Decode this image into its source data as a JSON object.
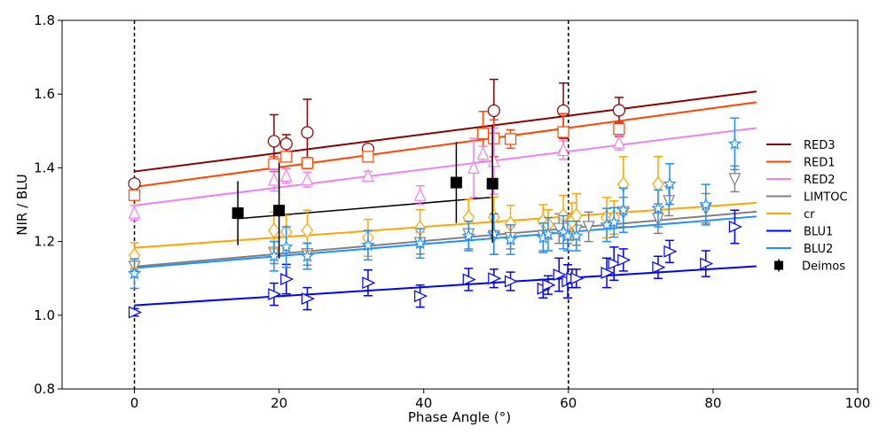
{
  "chart_data": {
    "type": "scatter",
    "title": "",
    "xlabel": "Phase Angle (°)",
    "ylabel": "NIR / BLU",
    "xlim": [
      -10,
      100
    ],
    "ylim": [
      0.8,
      1.8
    ],
    "xticks": [
      0,
      20,
      40,
      60,
      80,
      100
    ],
    "xtick_labels": [
      "0",
      "20",
      "40",
      "60",
      "80",
      "100"
    ],
    "yticks": [
      0.8,
      1.0,
      1.2,
      1.4,
      1.6,
      1.8
    ],
    "ytick_labels": [
      "0.8",
      "1.0",
      "1.2",
      "1.4",
      "1.6",
      "1.8"
    ],
    "grid": false,
    "legend_position": "right",
    "vertical_reference_lines": [
      0,
      60
    ],
    "series": [
      {
        "name": "RED3",
        "color": "#8b0000",
        "marker": "circle",
        "fit": {
          "x": [
            0,
            86
          ],
          "y": [
            1.39,
            1.607
          ]
        },
        "points": [
          {
            "x": 0,
            "y": 1.357,
            "err": 0.0
          },
          {
            "x": 19.3,
            "y": 1.472,
            "err": 0.072
          },
          {
            "x": 21.0,
            "y": 1.465,
            "err": 0.025
          },
          {
            "x": 23.9,
            "y": 1.496,
            "err": 0.09
          },
          {
            "x": 32.3,
            "y": 1.451,
            "err": 0.01
          },
          {
            "x": 49.7,
            "y": 1.555,
            "err": 0.085
          },
          {
            "x": 59.3,
            "y": 1.555,
            "err": 0.075
          },
          {
            "x": 67.0,
            "y": 1.556,
            "err": 0.035
          }
        ]
      },
      {
        "name": "RED1",
        "color": "#ff4500",
        "marker": "square",
        "fit": {
          "x": [
            0,
            86
          ],
          "y": [
            1.348,
            1.578
          ]
        },
        "points": [
          {
            "x": 0,
            "y": 1.326,
            "err": 0.0
          },
          {
            "x": 19.3,
            "y": 1.41,
            "err": 0.02
          },
          {
            "x": 21.0,
            "y": 1.43,
            "err": 0.012
          },
          {
            "x": 23.9,
            "y": 1.413,
            "err": 0.015
          },
          {
            "x": 32.3,
            "y": 1.43,
            "err": 0.01
          },
          {
            "x": 48.2,
            "y": 1.493,
            "err": 0.06
          },
          {
            "x": 49.7,
            "y": 1.48,
            "err": 0.05
          },
          {
            "x": 52.0,
            "y": 1.478,
            "err": 0.025
          },
          {
            "x": 59.3,
            "y": 1.497,
            "err": 0.05
          },
          {
            "x": 67.0,
            "y": 1.505,
            "err": 0.02
          }
        ]
      },
      {
        "name": "RED2",
        "color": "#ee82ee",
        "marker": "triangle-up",
        "fit": {
          "x": [
            0,
            86
          ],
          "y": [
            1.298,
            1.508
          ]
        },
        "points": [
          {
            "x": 0,
            "y": 1.278,
            "err": 0.02
          },
          {
            "x": 19.3,
            "y": 1.367,
            "err": 0.03
          },
          {
            "x": 21.0,
            "y": 1.378,
            "err": 0.02
          },
          {
            "x": 23.9,
            "y": 1.368,
            "err": 0.02
          },
          {
            "x": 32.3,
            "y": 1.378,
            "err": 0.012
          },
          {
            "x": 39.5,
            "y": 1.326,
            "err": 0.025
          },
          {
            "x": 46.9,
            "y": 1.4,
            "err": 0.08
          },
          {
            "x": 48.2,
            "y": 1.438,
            "err": 0.02
          },
          {
            "x": 49.7,
            "y": 1.418,
            "err": 0.09
          },
          {
            "x": 59.3,
            "y": 1.448,
            "err": 0.025
          },
          {
            "x": 67.0,
            "y": 1.468,
            "err": 0.02
          }
        ]
      },
      {
        "name": "LIMTOC",
        "color": "#808080",
        "marker": "triangle-down",
        "fit": {
          "x": [
            0,
            86
          ],
          "y": [
            1.132,
            1.281
          ]
        },
        "points": [
          {
            "x": 0,
            "y": 1.132,
            "err": 0.01
          },
          {
            "x": 19.3,
            "y": 1.17,
            "err": 0.03
          },
          {
            "x": 23.9,
            "y": 1.166,
            "err": 0.03
          },
          {
            "x": 39.5,
            "y": 1.196,
            "err": 0.03
          },
          {
            "x": 46.2,
            "y": 1.22,
            "err": 0.04
          },
          {
            "x": 49.7,
            "y": 1.215,
            "err": 0.05
          },
          {
            "x": 52.0,
            "y": 1.21,
            "err": 0.03
          },
          {
            "x": 56.5,
            "y": 1.215,
            "err": 0.04
          },
          {
            "x": 58.7,
            "y": 1.235,
            "err": 0.04
          },
          {
            "x": 59.9,
            "y": 1.235,
            "err": 0.04
          },
          {
            "x": 61.1,
            "y": 1.23,
            "err": 0.04
          },
          {
            "x": 62.8,
            "y": 1.24,
            "err": 0.04
          },
          {
            "x": 67.6,
            "y": 1.28,
            "err": 0.04
          },
          {
            "x": 72.4,
            "y": 1.262,
            "err": 0.04
          },
          {
            "x": 73.9,
            "y": 1.31,
            "err": 0.04
          },
          {
            "x": 79.0,
            "y": 1.29,
            "err": 0.04
          },
          {
            "x": 83.0,
            "y": 1.37,
            "err": 0.035
          }
        ]
      },
      {
        "name": "cr",
        "color": "#ffa500",
        "marker": "diamond",
        "fit": {
          "x": [
            0,
            86
          ],
          "y": [
            1.183,
            1.305
          ]
        },
        "points": [
          {
            "x": 0,
            "y": 1.162,
            "err": 0.035
          },
          {
            "x": 19.3,
            "y": 1.23,
            "err": 0.05
          },
          {
            "x": 21.0,
            "y": 1.226,
            "err": 0.045
          },
          {
            "x": 23.9,
            "y": 1.23,
            "err": 0.055
          },
          {
            "x": 32.3,
            "y": 1.21,
            "err": 0.05
          },
          {
            "x": 39.5,
            "y": 1.236,
            "err": 0.05
          },
          {
            "x": 46.2,
            "y": 1.265,
            "err": 0.05
          },
          {
            "x": 49.7,
            "y": 1.266,
            "err": 0.055
          },
          {
            "x": 52.0,
            "y": 1.248,
            "err": 0.05
          },
          {
            "x": 56.5,
            "y": 1.255,
            "err": 0.045
          },
          {
            "x": 57.2,
            "y": 1.246,
            "err": 0.04
          },
          {
            "x": 59.3,
            "y": 1.27,
            "err": 0.055
          },
          {
            "x": 60.5,
            "y": 1.255,
            "err": 0.05
          },
          {
            "x": 61.1,
            "y": 1.27,
            "err": 0.06
          },
          {
            "x": 65.3,
            "y": 1.265,
            "err": 0.055
          },
          {
            "x": 66.3,
            "y": 1.265,
            "err": 0.045
          },
          {
            "x": 67.6,
            "y": 1.355,
            "err": 0.075
          },
          {
            "x": 72.4,
            "y": 1.356,
            "err": 0.075
          }
        ]
      },
      {
        "name": "BLU1",
        "color": "#0000ff",
        "marker": "triangle-right",
        "fit": {
          "x": [
            0,
            86
          ],
          "y": [
            1.027,
            1.133
          ]
        },
        "points": [
          {
            "x": 0,
            "y": 1.008,
            "err": 0.01
          },
          {
            "x": 19.3,
            "y": 1.057,
            "err": 0.03
          },
          {
            "x": 21.0,
            "y": 1.098,
            "err": 0.04
          },
          {
            "x": 23.9,
            "y": 1.045,
            "err": 0.03
          },
          {
            "x": 32.3,
            "y": 1.088,
            "err": 0.035
          },
          {
            "x": 39.5,
            "y": 1.052,
            "err": 0.03
          },
          {
            "x": 46.2,
            "y": 1.097,
            "err": 0.03
          },
          {
            "x": 49.7,
            "y": 1.1,
            "err": 0.025
          },
          {
            "x": 52.0,
            "y": 1.092,
            "err": 0.025
          },
          {
            "x": 56.5,
            "y": 1.072,
            "err": 0.025
          },
          {
            "x": 57.2,
            "y": 1.082,
            "err": 0.025
          },
          {
            "x": 58.7,
            "y": 1.11,
            "err": 0.045
          },
          {
            "x": 59.9,
            "y": 1.092,
            "err": 0.045
          },
          {
            "x": 60.5,
            "y": 1.1,
            "err": 0.025
          },
          {
            "x": 61.1,
            "y": 1.1,
            "err": 0.025
          },
          {
            "x": 65.3,
            "y": 1.115,
            "err": 0.04
          },
          {
            "x": 66.3,
            "y": 1.14,
            "err": 0.045
          },
          {
            "x": 67.6,
            "y": 1.15,
            "err": 0.03
          },
          {
            "x": 72.4,
            "y": 1.13,
            "err": 0.03
          },
          {
            "x": 74.0,
            "y": 1.173,
            "err": 0.03
          },
          {
            "x": 79.0,
            "y": 1.14,
            "err": 0.035
          },
          {
            "x": 83.0,
            "y": 1.24,
            "err": 0.045
          }
        ]
      },
      {
        "name": "BLU2",
        "color": "#1e90ff",
        "marker": "star",
        "fit": {
          "x": [
            0,
            86
          ],
          "y": [
            1.128,
            1.268
          ]
        },
        "points": [
          {
            "x": 0,
            "y": 1.113,
            "err": 0.04
          },
          {
            "x": 19.3,
            "y": 1.16,
            "err": 0.04
          },
          {
            "x": 21.0,
            "y": 1.185,
            "err": 0.055
          },
          {
            "x": 23.9,
            "y": 1.16,
            "err": 0.035
          },
          {
            "x": 32.3,
            "y": 1.19,
            "err": 0.04
          },
          {
            "x": 39.5,
            "y": 1.195,
            "err": 0.04
          },
          {
            "x": 46.2,
            "y": 1.215,
            "err": 0.04
          },
          {
            "x": 49.7,
            "y": 1.22,
            "err": 0.055
          },
          {
            "x": 52.0,
            "y": 1.205,
            "err": 0.04
          },
          {
            "x": 56.5,
            "y": 1.21,
            "err": 0.04
          },
          {
            "x": 57.2,
            "y": 1.22,
            "err": 0.045
          },
          {
            "x": 59.3,
            "y": 1.225,
            "err": 0.045
          },
          {
            "x": 59.9,
            "y": 1.215,
            "err": 0.04
          },
          {
            "x": 61.1,
            "y": 1.215,
            "err": 0.04
          },
          {
            "x": 65.3,
            "y": 1.245,
            "err": 0.045
          },
          {
            "x": 66.3,
            "y": 1.252,
            "err": 0.04
          },
          {
            "x": 67.6,
            "y": 1.285,
            "err": 0.06
          },
          {
            "x": 72.4,
            "y": 1.29,
            "err": 0.05
          },
          {
            "x": 74.0,
            "y": 1.356,
            "err": 0.055
          },
          {
            "x": 79.0,
            "y": 1.3,
            "err": 0.055
          },
          {
            "x": 83.0,
            "y": 1.465,
            "err": 0.07
          }
        ]
      },
      {
        "name": "Deimos",
        "color": "#000000",
        "marker": "filled-square",
        "fit": {
          "x": [
            14.3,
            49.5
          ],
          "y": [
            1.262,
            1.32
          ]
        },
        "points": [
          {
            "x": 14.3,
            "y": 1.277,
            "err": 0.087
          },
          {
            "x": 20.0,
            "y": 1.284,
            "err": 0.13
          },
          {
            "x": 44.5,
            "y": 1.36,
            "err": 0.11
          },
          {
            "x": 49.5,
            "y": 1.357,
            "err": 0.16
          }
        ]
      }
    ]
  }
}
